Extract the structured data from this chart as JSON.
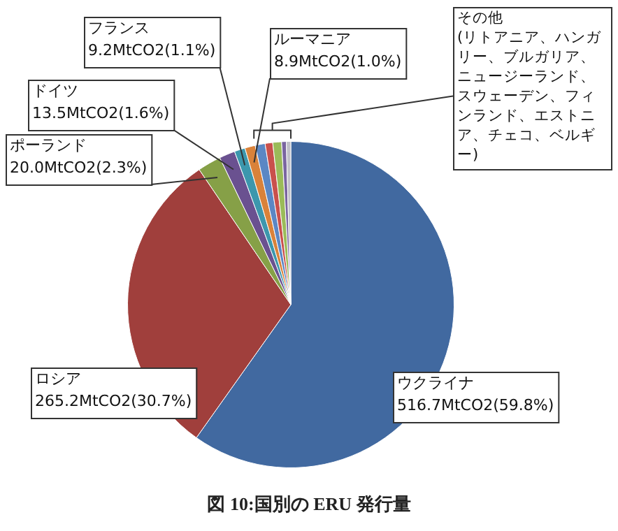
{
  "chart_data": {
    "type": "pie",
    "title": "図 10:国別の ERU 発行量",
    "categories": [
      "ウクライナ",
      "ロシア",
      "ポーランド",
      "ドイツ",
      "フランス",
      "ルーマニア",
      null,
      null,
      null,
      null,
      null
    ],
    "values": [
      516.7,
      265.2,
      20.0,
      13.5,
      9.2,
      8.9,
      8.5,
      6.5,
      7.5,
      4.0,
      3.8
    ],
    "colors": [
      "#4169a0",
      "#a03f3c",
      "#86a047",
      "#6a5190",
      "#3c97ad",
      "#d9823a",
      "#5b87c4",
      "#c9504c",
      "#9bbb59",
      "#7a65a0",
      "#c0c0c8"
    ],
    "value_labels": [
      "516.7MtCO2(59.8%)",
      "265.2MtCO2(30.7%)",
      "20.0MtCO2(2.3%)",
      "13.5MtCO2(1.6%)",
      "9.2MtCO2(1.1%)",
      "8.9MtCO2(1.0%)",
      null,
      null,
      null,
      null,
      null
    ],
    "annotations": [
      "その他\n(リトアニア、ハンガリー、ブルガリア、ニュージーランド、スウェーデン、フィンランド、エストニア、チェコ、ベルギー)"
    ],
    "legend": false
  }
}
